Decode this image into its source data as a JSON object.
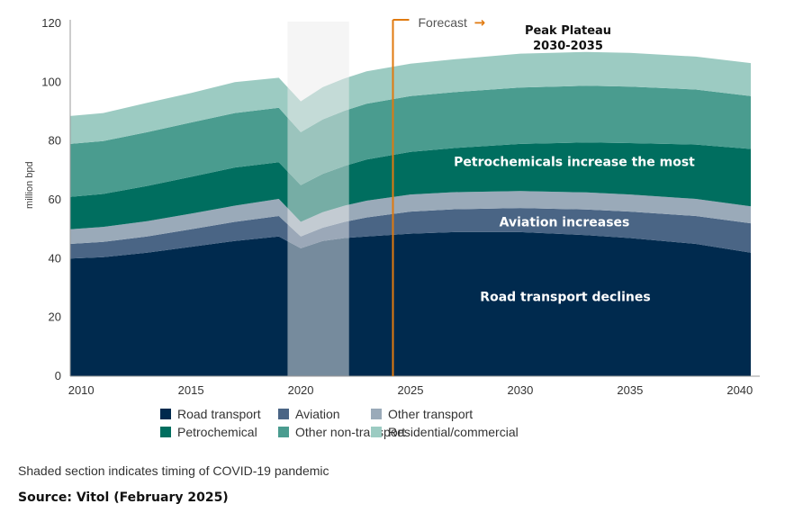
{
  "chart_data": {
    "type": "area",
    "stacked": true,
    "ylabel": "million bpd",
    "xlabel": "",
    "ylim": [
      0,
      120
    ],
    "yticks": [
      0,
      20,
      40,
      60,
      80,
      100,
      120
    ],
    "xlim": [
      2009.5,
      2040.5
    ],
    "xticks": [
      2010,
      2015,
      2020,
      2025,
      2030,
      2035,
      2040
    ],
    "x": [
      2009.5,
      2011,
      2013,
      2015,
      2017,
      2019,
      2020,
      2021,
      2022,
      2023,
      2025,
      2027,
      2030,
      2033,
      2035,
      2038,
      2040.5
    ],
    "series": [
      {
        "name": "Road transport",
        "color": "#002a4e",
        "values": [
          40,
          40.5,
          42,
          44,
          46,
          47.5,
          43.5,
          46,
          47,
          47.5,
          48.5,
          49,
          49,
          48,
          47,
          45,
          42
        ]
      },
      {
        "name": "Aviation",
        "color": "#4a6585",
        "values": [
          5,
          5.2,
          5.5,
          6,
          6.5,
          7,
          4,
          4.5,
          5.5,
          6.5,
          7.5,
          7.8,
          8.2,
          8.7,
          9,
          9.5,
          10
        ]
      },
      {
        "name": "Other transport",
        "color": "#9aaab9",
        "values": [
          5,
          5.1,
          5.2,
          5.3,
          5.5,
          5.8,
          5,
          5.3,
          5.5,
          5.7,
          5.8,
          5.8,
          5.8,
          5.8,
          5.8,
          5.8,
          5.8
        ]
      },
      {
        "name": "Petrochemical",
        "color": "#006e5f",
        "values": [
          11,
          11.2,
          12,
          12.5,
          13,
          12.5,
          12.5,
          13,
          13.5,
          14,
          14.5,
          15,
          16,
          17,
          17.5,
          18.5,
          19.5
        ]
      },
      {
        "name": "Other non-transport",
        "color": "#4a9c8f",
        "values": [
          18,
          18,
          18.3,
          18.5,
          18.5,
          18.5,
          18,
          18.5,
          18.8,
          19,
          19,
          19,
          19.2,
          19.3,
          19.2,
          18.7,
          18
        ]
      },
      {
        "name": "Residential/commercial",
        "color": "#9ccbc2",
        "values": [
          9.5,
          9.5,
          10,
          10,
          10.5,
          10.2,
          10.5,
          11,
          11,
          11,
          11,
          11.2,
          11.5,
          11.5,
          11.5,
          11.2,
          11.2
        ]
      }
    ],
    "covid_shading": {
      "from": 2019.4,
      "to": 2022.2
    },
    "forecast": {
      "start": 2024.2,
      "label": "Forecast",
      "arrow": "→",
      "color": "#e07a10"
    },
    "annotations": {
      "road": "Road transport declines",
      "aviation": "Aviation increases",
      "petrochemicals": "Petrochemicals increase the most",
      "peak_line1": "Peak Plateau",
      "peak_line2": "2030-2035"
    }
  },
  "legend": {
    "items": [
      {
        "label": "Road transport",
        "color": "#002a4e"
      },
      {
        "label": "Aviation",
        "color": "#4a6585"
      },
      {
        "label": "Other transport",
        "color": "#9aaab9"
      },
      {
        "label": "Petrochemical",
        "color": "#006e5f"
      },
      {
        "label": "Other non-transport",
        "color": "#4a9c8f"
      },
      {
        "label": "Residential/commercial",
        "color": "#9ccbc2"
      }
    ]
  },
  "footer": {
    "note": "Shaded section indicates timing of COVID-19 pandemic",
    "source": "Source: Vitol (February 2025)"
  }
}
